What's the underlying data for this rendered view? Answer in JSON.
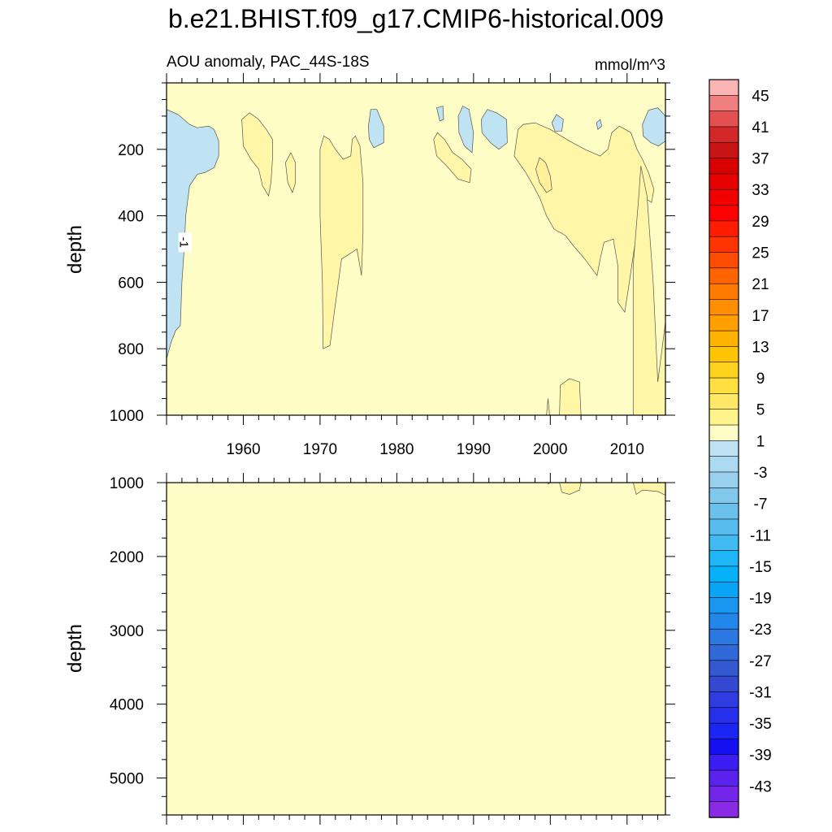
{
  "title": "b.e21.BHIST.f09_g17.CMIP6-historical.009",
  "subtitle_left": "AOU anomaly, PAC_44S-18S",
  "units": "mmol/m^3",
  "colors": {
    "background_field": "#fffdc6",
    "negative_patch": "#bfe3f3",
    "positive_patch": "#fff6a8",
    "stronger_positive_patch": "#fff099",
    "contour_line": "#555555"
  },
  "chart_data": [
    {
      "type": "heatmap",
      "panel": "upper",
      "xlabel": "",
      "ylabel": "depth",
      "x_range": [
        1950,
        2015
      ],
      "y_range": [
        0,
        1000
      ],
      "y_reversed": true,
      "x_ticks": [
        "1960",
        "1970",
        "1980",
        "1990",
        "2000",
        "2010"
      ],
      "y_ticks": [
        "200",
        "400",
        "600",
        "800",
        "1000"
      ],
      "contour_labels": [
        {
          "text": "-1",
          "year": 1952.4,
          "depth": 480
        }
      ],
      "patches": [
        {
          "sign": "neg",
          "points": [
            [
              1950,
              80
            ],
            [
              1951.5,
              95
            ],
            [
              1953,
              125
            ],
            [
              1954,
              135
            ],
            [
              1955.5,
              130
            ],
            [
              1956.2,
              140
            ],
            [
              1956.8,
              175
            ],
            [
              1956.8,
              220
            ],
            [
              1956.2,
              255
            ],
            [
              1955,
              270
            ],
            [
              1954,
              275
            ],
            [
              1953,
              310
            ],
            [
              1952.5,
              400
            ],
            [
              1952.3,
              500
            ],
            [
              1952,
              600
            ],
            [
              1951.8,
              730
            ],
            [
              1951.2,
              745
            ],
            [
              1950.6,
              780
            ],
            [
              1950,
              830
            ]
          ]
        },
        {
          "sign": "pos",
          "points": [
            [
              1959.8,
              110
            ],
            [
              1960.8,
              90
            ],
            [
              1962,
              110
            ],
            [
              1963,
              140
            ],
            [
              1963.8,
              170
            ],
            [
              1963.8,
              230
            ],
            [
              1963.6,
              300
            ],
            [
              1963.3,
              340
            ],
            [
              1962.5,
              310
            ],
            [
              1962,
              260
            ],
            [
              1961,
              230
            ],
            [
              1960,
              190
            ]
          ]
        },
        {
          "sign": "pos",
          "points": [
            [
              1965.5,
              240
            ],
            [
              1966.2,
              210
            ],
            [
              1966.8,
              240
            ],
            [
              1966.8,
              300
            ],
            [
              1966.4,
              330
            ],
            [
              1965.8,
              300
            ]
          ]
        },
        {
          "sign": "pos",
          "points": [
            [
              1970,
              200
            ],
            [
              1970.5,
              160
            ],
            [
              1971.2,
              170
            ],
            [
              1972,
              200
            ],
            [
              1973,
              230
            ],
            [
              1974,
              220
            ],
            [
              1974.2,
              170
            ],
            [
              1974.6,
              160
            ],
            [
              1975.2,
              190
            ],
            [
              1975.6,
              300
            ],
            [
              1975.6,
              450
            ],
            [
              1975.4,
              580
            ],
            [
              1974.8,
              500
            ],
            [
              1973.5,
              520
            ],
            [
              1972.8,
              530
            ],
            [
              1971.8,
              700
            ],
            [
              1971.3,
              790
            ],
            [
              1970.4,
              800
            ],
            [
              1970.3,
              600
            ],
            [
              1970,
              400
            ]
          ]
        },
        {
          "sign": "neg",
          "points": [
            [
              1976.3,
              130
            ],
            [
              1976.6,
              80
            ],
            [
              1977.4,
              80
            ],
            [
              1978.3,
              130
            ],
            [
              1978.3,
              180
            ],
            [
              1977,
              195
            ],
            [
              1976.4,
              170
            ]
          ]
        },
        {
          "sign": "neg",
          "points": [
            [
              1985.2,
              75
            ],
            [
              1986,
              70
            ],
            [
              1986.1,
              110
            ],
            [
              1985.6,
              115
            ]
          ]
        },
        {
          "sign": "pos",
          "points": [
            [
              1984.8,
              170
            ],
            [
              1985.3,
              150
            ],
            [
              1986.2,
              170
            ],
            [
              1987.3,
              210
            ],
            [
              1988.5,
              230
            ],
            [
              1989.7,
              260
            ],
            [
              1989.5,
              300
            ],
            [
              1988,
              290
            ],
            [
              1986.5,
              250
            ],
            [
              1985.2,
              220
            ]
          ]
        },
        {
          "sign": "neg",
          "points": [
            [
              1988,
              100
            ],
            [
              1988.6,
              70
            ],
            [
              1989.4,
              80
            ],
            [
              1990,
              150
            ],
            [
              1989.8,
              210
            ],
            [
              1988.8,
              190
            ],
            [
              1988.1,
              150
            ]
          ]
        },
        {
          "sign": "neg",
          "points": [
            [
              1991,
              110
            ],
            [
              1991.8,
              80
            ],
            [
              1993,
              90
            ],
            [
              1994.3,
              110
            ],
            [
              1994.4,
              180
            ],
            [
              1993.3,
              200
            ],
            [
              1992.2,
              180
            ],
            [
              1991.1,
              150
            ]
          ]
        },
        {
          "sign": "pos",
          "points": [
            [
              1995.3,
              220
            ],
            [
              1995.8,
              140
            ],
            [
              1996.5,
              125
            ],
            [
              1998,
              120
            ],
            [
              2000,
              140
            ],
            [
              2002.5,
              175
            ],
            [
              2004.5,
              200
            ],
            [
              2006.5,
              220
            ],
            [
              2007.5,
              200
            ],
            [
              2008,
              150
            ],
            [
              2009,
              130
            ],
            [
              2010.5,
              150
            ],
            [
              2011.3,
              200
            ],
            [
              2012,
              230
            ],
            [
              2012.8,
              270
            ],
            [
              2013.5,
              320
            ],
            [
              2013.2,
              360
            ],
            [
              2012.5,
              350
            ],
            [
              2012,
              400
            ],
            [
              2011.5,
              420
            ],
            [
              2010.8,
              520
            ],
            [
              2010.3,
              600
            ],
            [
              2009.7,
              690
            ],
            [
              2008.8,
              660
            ],
            [
              2008.8,
              550
            ],
            [
              2008.2,
              470
            ],
            [
              2007,
              480
            ],
            [
              2006.5,
              530
            ],
            [
              2006.1,
              580
            ],
            [
              2004.5,
              530
            ],
            [
              2003,
              490
            ],
            [
              2002,
              460
            ],
            [
              2000.5,
              440
            ],
            [
              1999.5,
              400
            ],
            [
              1998.7,
              350
            ],
            [
              1997.8,
              310
            ],
            [
              1996.8,
              270
            ]
          ]
        },
        {
          "sign": "pos2",
          "points": [
            [
              1998.1,
              260
            ],
            [
              1998.6,
              225
            ],
            [
              1999.4,
              240
            ],
            [
              2000,
              280
            ],
            [
              2000.2,
              320
            ],
            [
              1999.5,
              330
            ],
            [
              1998.6,
              300
            ]
          ]
        },
        {
          "sign": "neg",
          "points": [
            [
              2000.2,
              120
            ],
            [
              2000.8,
              95
            ],
            [
              2001.7,
              110
            ],
            [
              2001.5,
              145
            ],
            [
              2000.6,
              145
            ]
          ]
        },
        {
          "sign": "neg",
          "points": [
            [
              2006,
              120
            ],
            [
              2006.5,
              110
            ],
            [
              2006.7,
              130
            ],
            [
              2006.2,
              140
            ]
          ]
        },
        {
          "sign": "neg",
          "points": [
            [
              2012,
              125
            ],
            [
              2012.8,
              82
            ],
            [
              2014,
              75
            ],
            [
              2015,
              100
            ],
            [
              2015,
              175
            ],
            [
              2014.1,
              190
            ],
            [
              2013.1,
              180
            ],
            [
              2012.1,
              160
            ]
          ]
        },
        {
          "sign": "pos",
          "points": [
            [
              2010.8,
              550
            ],
            [
              2011.5,
              350
            ],
            [
              2011.8,
              250
            ],
            [
              2012.6,
              340
            ],
            [
              2013.4,
              600
            ],
            [
              2014,
              900
            ],
            [
              2015,
              720
            ],
            [
              2015,
              1000
            ],
            [
              2010.8,
              1000
            ]
          ]
        },
        {
          "sign": "pos",
          "points": [
            [
              2001.2,
              1000
            ],
            [
              2001.3,
              910
            ],
            [
              2002.5,
              890
            ],
            [
              2003.8,
              900
            ],
            [
              2004,
              1000
            ]
          ]
        },
        {
          "sign": "pos",
          "points": [
            [
              1999.5,
              1000
            ],
            [
              1999.7,
              950
            ],
            [
              1999.9,
              1000
            ]
          ]
        }
      ]
    },
    {
      "type": "heatmap",
      "panel": "lower",
      "xlabel": "",
      "ylabel": "depth",
      "x_range": [
        1950,
        2015
      ],
      "y_range": [
        1000,
        5500
      ],
      "y_reversed": true,
      "x_ticks": [],
      "y_ticks": [
        "1000",
        "2000",
        "3000",
        "4000",
        "5000"
      ],
      "patches": [
        {
          "sign": "pos",
          "points": [
            [
              2001.2,
              1000
            ],
            [
              2004,
              1000
            ],
            [
              2003.8,
              1100
            ],
            [
              2002.5,
              1160
            ],
            [
              2001.5,
              1130
            ]
          ]
        },
        {
          "sign": "pos",
          "points": [
            [
              2010.8,
              1000
            ],
            [
              2015,
              1000
            ],
            [
              2015,
              1170
            ],
            [
              2014,
              1120
            ],
            [
              2012,
              1100
            ],
            [
              2011.2,
              1160
            ]
          ]
        },
        {
          "sign": "pos",
          "points": [
            [
              1999.6,
              1000
            ],
            [
              1999.9,
              1000
            ],
            [
              1999.8,
              1020
            ]
          ]
        }
      ]
    }
  ],
  "colorbar": {
    "labels": [
      "45",
      "41",
      "37",
      "33",
      "29",
      "25",
      "21",
      "17",
      "13",
      "9",
      "5",
      "1",
      "-3",
      "-7",
      "-11",
      "-15",
      "-19",
      "-23",
      "-27",
      "-31",
      "-35",
      "-39",
      "-43"
    ],
    "colors": [
      "#fbb4b4",
      "#f08080",
      "#e45050",
      "#d42828",
      "#c81414",
      "#d80000",
      "#e60000",
      "#f20000",
      "#ff0000",
      "#ff1c00",
      "#ff3400",
      "#ff4c00",
      "#ff6400",
      "#ff7a00",
      "#ff8e00",
      "#ffa000",
      "#ffb200",
      "#ffc400",
      "#ffd21e",
      "#ffe040",
      "#ffe866",
      "#fff38c",
      "#fffdc6",
      "#bfe3f3",
      "#acdaf0",
      "#98d0ed",
      "#82c7ec",
      "#6cc0ec",
      "#58bdee",
      "#3fbaf3",
      "#1eb6f6",
      "#05b2fa",
      "#0aa4f6",
      "#1996f0",
      "#2286ea",
      "#2b78e2",
      "#3068d8",
      "#3358d0",
      "#3349d4",
      "#2e3ce0",
      "#2630ec",
      "#1c26f4",
      "#1410f0",
      "#3c1cf0",
      "#5a22ee",
      "#7326ea",
      "#8a2ae4"
    ]
  }
}
